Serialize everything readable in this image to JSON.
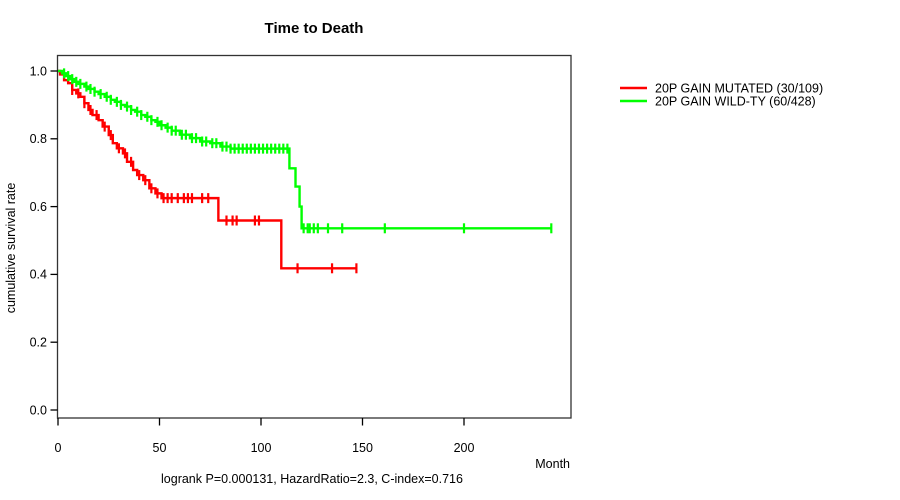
{
  "chart_data": {
    "type": "line",
    "subtype": "kaplan-meier-step",
    "title": "Time to Death",
    "xlabel": "Month",
    "ylabel": "cumulative survival rate",
    "annotation": "logrank P=0.000131, HazardRatio=2.3, C-index=0.716",
    "xlim": [
      0,
      253
    ],
    "ylim": [
      0.0,
      1.0
    ],
    "x_ticks": [
      0,
      50,
      100,
      150,
      200
    ],
    "y_ticks": [
      "0.0",
      "0.2",
      "0.4",
      "0.6",
      "0.8",
      "1.0"
    ],
    "grid": false,
    "legend_position": "right-outside",
    "frame_color": "#333333",
    "series": [
      {
        "name": "20P GAIN MUTATED (30/109)",
        "color": "#ff0000",
        "end_month": 147,
        "steps": [
          [
            0,
            1.0
          ],
          [
            1,
            0.99
          ],
          [
            3,
            0.973
          ],
          [
            5,
            0.964
          ],
          [
            7,
            0.944
          ],
          [
            9,
            0.934
          ],
          [
            11,
            0.924
          ],
          [
            13,
            0.905
          ],
          [
            15,
            0.885
          ],
          [
            17,
            0.87
          ],
          [
            20,
            0.855
          ],
          [
            22,
            0.836
          ],
          [
            25,
            0.811
          ],
          [
            27,
            0.787
          ],
          [
            29,
            0.772
          ],
          [
            32,
            0.757
          ],
          [
            34,
            0.732
          ],
          [
            37,
            0.708
          ],
          [
            39,
            0.693
          ],
          [
            42,
            0.678
          ],
          [
            45,
            0.654
          ],
          [
            48,
            0.639
          ],
          [
            51,
            0.625
          ],
          [
            79,
            0.559
          ],
          [
            110,
            0.418
          ]
        ],
        "censor_months": [
          7,
          10,
          13,
          16,
          19,
          23,
          26,
          30,
          33,
          36,
          40,
          43,
          46,
          49,
          52,
          54,
          56,
          59,
          62,
          64,
          66,
          71,
          74,
          83,
          86,
          88,
          97,
          99,
          118,
          135,
          147
        ]
      },
      {
        "name": "20P GAIN WILD-TY (60/428)",
        "color": "#00ff00",
        "end_month": 243,
        "steps": [
          [
            0,
            1.0
          ],
          [
            2,
            0.993
          ],
          [
            4,
            0.985
          ],
          [
            6,
            0.976
          ],
          [
            8,
            0.968
          ],
          [
            10,
            0.962
          ],
          [
            13,
            0.954
          ],
          [
            15,
            0.947
          ],
          [
            18,
            0.939
          ],
          [
            20,
            0.932
          ],
          [
            23,
            0.924
          ],
          [
            26,
            0.915
          ],
          [
            28,
            0.909
          ],
          [
            31,
            0.9
          ],
          [
            33,
            0.895
          ],
          [
            36,
            0.885
          ],
          [
            38,
            0.88
          ],
          [
            41,
            0.87
          ],
          [
            43,
            0.865
          ],
          [
            46,
            0.855
          ],
          [
            48,
            0.85
          ],
          [
            50,
            0.84
          ],
          [
            53,
            0.833
          ],
          [
            56,
            0.824
          ],
          [
            60,
            0.812
          ],
          [
            65,
            0.802
          ],
          [
            70,
            0.792
          ],
          [
            75,
            0.787
          ],
          [
            80,
            0.777
          ],
          [
            85,
            0.771
          ],
          [
            114,
            0.713
          ],
          [
            117,
            0.659
          ],
          [
            119,
            0.6
          ],
          [
            120,
            0.536
          ]
        ],
        "censor_months": [
          3,
          5,
          7,
          9,
          11,
          14,
          16,
          18,
          21,
          24,
          26,
          29,
          31,
          34,
          36,
          39,
          41,
          44,
          46,
          49,
          51,
          54,
          56,
          58,
          61,
          63,
          66,
          68,
          71,
          73,
          76,
          78,
          81,
          83,
          85,
          87,
          89,
          91,
          93,
          95,
          97,
          99,
          101,
          103,
          105,
          107,
          109,
          111,
          113,
          121,
          123,
          124,
          126,
          128,
          133,
          140,
          161,
          200,
          243
        ]
      }
    ]
  }
}
